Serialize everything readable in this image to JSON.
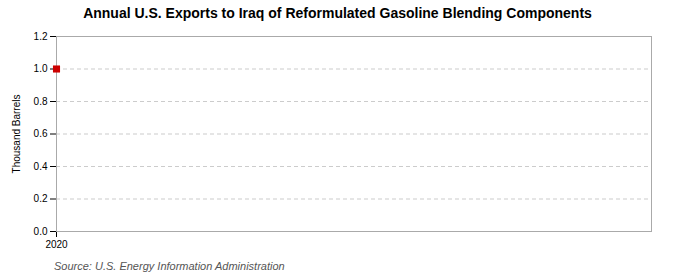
{
  "chart_data": {
    "type": "scatter",
    "title": "Annual U.S. Exports to Iraq of Reformulated Gasoline Blending Components",
    "ylabel": "Thousand Barrels",
    "source": "Source: U.S. Energy Information Administration",
    "x": [
      2020
    ],
    "values": [
      1.0
    ],
    "color": "#cc0000",
    "marker": "square",
    "xlim": [
      2020,
      2026
    ],
    "xticks": [
      2020
    ],
    "ylim": [
      0.0,
      1.2
    ],
    "yticks": [
      {
        "value": 0.0,
        "label": "0.0"
      },
      0.2,
      0.4,
      0.6,
      0.8,
      {
        "value": 1.0,
        "label": "1.0"
      },
      1.2
    ],
    "grid": true
  }
}
